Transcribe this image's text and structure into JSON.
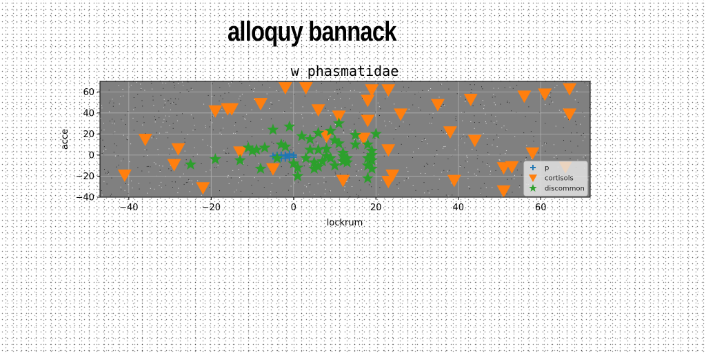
{
  "header": {
    "title": "alloquy bannack"
  },
  "chart_data": {
    "type": "scatter",
    "title": "w phasmatidae",
    "xlabel": "lockrum",
    "ylabel": "acce",
    "xlim": [
      -47,
      72
    ],
    "ylim": [
      -40,
      70
    ],
    "xticks": [
      -40,
      -20,
      0,
      20,
      40,
      60
    ],
    "yticks": [
      -40,
      -20,
      0,
      20,
      40,
      60
    ],
    "grid": true,
    "legend_position": "lower-right",
    "plot_background": "#808080",
    "series": [
      {
        "name": "p",
        "marker": "plus",
        "color": "#1f77b4",
        "points": [
          [
            -5,
            -1
          ],
          [
            -4,
            0
          ],
          [
            -3,
            -3
          ],
          [
            -2,
            -1
          ],
          [
            -1,
            1
          ],
          [
            0,
            -2
          ],
          [
            -4,
            -2
          ],
          [
            -2,
            -3
          ],
          [
            -3,
            0
          ],
          [
            -1,
            -2
          ],
          [
            -2,
            0
          ],
          [
            0,
            0
          ]
        ]
      },
      {
        "name": "cortisols",
        "marker": "triangle-down",
        "color": "#ff7f0e",
        "points": [
          [
            -41,
            -19
          ],
          [
            -36,
            15
          ],
          [
            -29,
            -9
          ],
          [
            -28,
            6
          ],
          [
            -22,
            -31
          ],
          [
            -19,
            42
          ],
          [
            -16,
            44
          ],
          [
            -15,
            44
          ],
          [
            -13,
            3
          ],
          [
            -8,
            49
          ],
          [
            -5,
            -13
          ],
          [
            -2,
            64
          ],
          [
            3,
            64
          ],
          [
            6,
            43
          ],
          [
            8,
            18
          ],
          [
            11,
            37
          ],
          [
            12,
            -24
          ],
          [
            18,
            52
          ],
          [
            18,
            33
          ],
          [
            19,
            62
          ],
          [
            17,
            16
          ],
          [
            23,
            62
          ],
          [
            23,
            5
          ],
          [
            24,
            -19
          ],
          [
            23,
            -25
          ],
          [
            26,
            39
          ],
          [
            35,
            48
          ],
          [
            38,
            22
          ],
          [
            39,
            -24
          ],
          [
            43,
            53
          ],
          [
            44,
            14
          ],
          [
            51,
            -12
          ],
          [
            51,
            -34
          ],
          [
            53,
            -11
          ],
          [
            56,
            56
          ],
          [
            58,
            2
          ],
          [
            61,
            58
          ],
          [
            66,
            -11
          ],
          [
            67,
            63
          ],
          [
            67,
            39
          ]
        ]
      },
      {
        "name": "discommon",
        "marker": "star",
        "color": "#2ca02c",
        "points": [
          [
            -25,
            -9
          ],
          [
            -19,
            -4
          ],
          [
            -13,
            -5
          ],
          [
            -11,
            7
          ],
          [
            -10,
            4
          ],
          [
            -9,
            5
          ],
          [
            -8,
            -13
          ],
          [
            -7,
            7
          ],
          [
            -5,
            24
          ],
          [
            -4,
            -3
          ],
          [
            -3,
            10
          ],
          [
            -2,
            8
          ],
          [
            -1,
            27
          ],
          [
            0,
            -8
          ],
          [
            1,
            -20
          ],
          [
            1,
            -12
          ],
          [
            2,
            18
          ],
          [
            3,
            -3
          ],
          [
            4,
            5
          ],
          [
            4,
            15
          ],
          [
            5,
            -7
          ],
          [
            5,
            -13
          ],
          [
            6,
            -11
          ],
          [
            6,
            5
          ],
          [
            6,
            21
          ],
          [
            7,
            -6
          ],
          [
            8,
            -1
          ],
          [
            8,
            6
          ],
          [
            9,
            -3
          ],
          [
            9,
            23
          ],
          [
            10,
            -10
          ],
          [
            10,
            14
          ],
          [
            11,
            11
          ],
          [
            12,
            -6
          ],
          [
            12,
            2
          ],
          [
            12,
            -1
          ],
          [
            13,
            -7
          ],
          [
            13,
            -3
          ],
          [
            15,
            10
          ],
          [
            15,
            19
          ],
          [
            18,
            -22
          ],
          [
            18,
            -10
          ],
          [
            18,
            -3
          ],
          [
            18,
            10
          ],
          [
            19,
            -13
          ],
          [
            19,
            -5
          ],
          [
            19,
            0
          ],
          [
            19,
            4
          ],
          [
            20,
            20
          ],
          [
            11,
            30
          ]
        ]
      }
    ]
  }
}
